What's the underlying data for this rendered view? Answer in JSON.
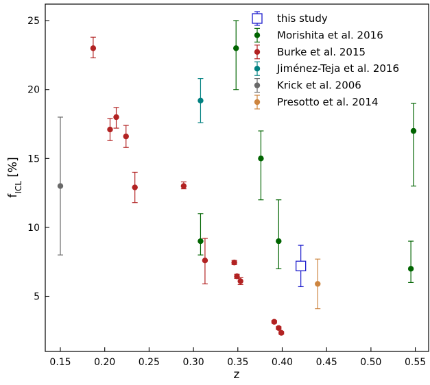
{
  "chart_data": {
    "type": "scatter",
    "xlabel": "z",
    "ylabel": "f",
    "ylabel_sub": "ICL",
    "ylabel_unit": " [%]",
    "xlim": [
      0.133,
      0.565
    ],
    "ylim": [
      1.0,
      26.2
    ],
    "xticks": [
      0.15,
      0.2,
      0.25,
      0.3,
      0.35,
      0.4,
      0.45,
      0.5,
      0.55
    ],
    "xtick_labels": [
      "0.15",
      "0.20",
      "0.25",
      "0.30",
      "0.35",
      "0.40",
      "0.45",
      "0.50",
      "0.55"
    ],
    "yticks": [
      5,
      10,
      15,
      20,
      25
    ],
    "ytick_labels": [
      "5",
      "10",
      "15",
      "20",
      "25"
    ],
    "legend_position": "top-center",
    "series": [
      {
        "name": "this study",
        "color": "#1a1acc",
        "marker": "open-square",
        "points": [
          {
            "x": 0.421,
            "y": 7.2,
            "lo": 5.7,
            "hi": 8.7
          }
        ]
      },
      {
        "name": "Morishita et al. 2016",
        "color": "#006400",
        "marker": "circle",
        "points": [
          {
            "x": 0.348,
            "y": 23.0,
            "lo": 20.0,
            "hi": 25.0
          },
          {
            "x": 0.376,
            "y": 15.0,
            "lo": 12.0,
            "hi": 17.0
          },
          {
            "x": 0.308,
            "y": 9.0,
            "lo": 8.0,
            "hi": 11.0
          },
          {
            "x": 0.396,
            "y": 9.0,
            "lo": 7.0,
            "hi": 12.0
          },
          {
            "x": 0.548,
            "y": 17.0,
            "lo": 13.0,
            "hi": 19.0
          },
          {
            "x": 0.545,
            "y": 7.0,
            "lo": 6.0,
            "hi": 9.0
          }
        ]
      },
      {
        "name": "Burke et al. 2015",
        "color": "#b22222",
        "marker": "circle",
        "points": [
          {
            "x": 0.187,
            "y": 23.0,
            "lo": 22.3,
            "hi": 23.8
          },
          {
            "x": 0.206,
            "y": 17.1,
            "lo": 16.3,
            "hi": 17.9
          },
          {
            "x": 0.213,
            "y": 18.0,
            "lo": 17.2,
            "hi": 18.7
          },
          {
            "x": 0.224,
            "y": 16.6,
            "lo": 15.8,
            "hi": 17.4
          },
          {
            "x": 0.234,
            "y": 12.9,
            "lo": 11.8,
            "hi": 14.0
          },
          {
            "x": 0.289,
            "y": 13.0,
            "lo": 12.8,
            "hi": 13.3
          },
          {
            "x": 0.313,
            "y": 7.6,
            "lo": 5.9,
            "hi": 9.2
          },
          {
            "x": 0.346,
            "y": 7.45,
            "lo": 7.3,
            "hi": 7.6
          },
          {
            "x": 0.349,
            "y": 6.45,
            "lo": 6.3,
            "hi": 6.6
          },
          {
            "x": 0.353,
            "y": 6.1,
            "lo": 5.85,
            "hi": 6.35
          },
          {
            "x": 0.391,
            "y": 3.15,
            "lo": 3.05,
            "hi": 3.25
          },
          {
            "x": 0.396,
            "y": 2.7,
            "lo": 2.6,
            "hi": 2.8
          },
          {
            "x": 0.399,
            "y": 2.35,
            "lo": 2.25,
            "hi": 2.45
          }
        ]
      },
      {
        "name": "Jiménez-Teja et al. 2016",
        "color": "#008080",
        "marker": "circle",
        "points": [
          {
            "x": 0.308,
            "y": 19.2,
            "lo": 17.6,
            "hi": 20.8
          }
        ]
      },
      {
        "name": "Krick et al. 2006",
        "color": "#696969",
        "marker": "circle",
        "points": [
          {
            "x": 0.15,
            "y": 13.0,
            "lo": 8.0,
            "hi": 18.0
          }
        ]
      },
      {
        "name": "Presotto et al. 2014",
        "color": "#cd853f",
        "marker": "circle",
        "points": [
          {
            "x": 0.44,
            "y": 5.9,
            "lo": 4.1,
            "hi": 7.7
          }
        ]
      }
    ]
  }
}
